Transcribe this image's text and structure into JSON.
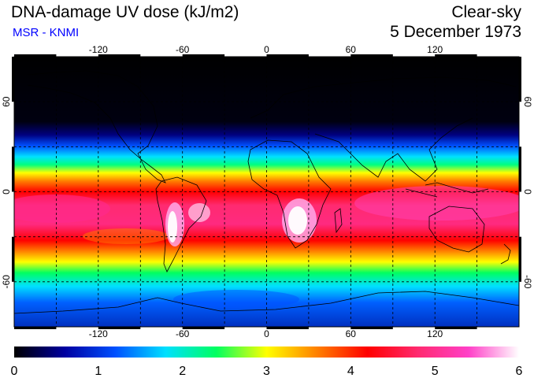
{
  "header": {
    "title": "DNA-damage UV dose (kJ/m2)",
    "subtitle": "MSR - KNMI",
    "condition": "Clear-sky",
    "date": "5 December 1973"
  },
  "map": {
    "lon_ticks": [
      "-120",
      "-60",
      "0",
      "60",
      "120"
    ],
    "lat_ticks": [
      "60",
      "0",
      "-60"
    ]
  },
  "colorbar": {
    "labels": [
      "0",
      "1",
      "2",
      "3",
      "4",
      "5",
      "6"
    ],
    "min": 0,
    "max": 6,
    "colors": [
      "#000000",
      "#0000a0",
      "#0050ff",
      "#00e0ff",
      "#00ff60",
      "#ffff00",
      "#ff8000",
      "#ff0000",
      "#ff2a70",
      "#ff40c8",
      "#ffffff"
    ]
  }
}
